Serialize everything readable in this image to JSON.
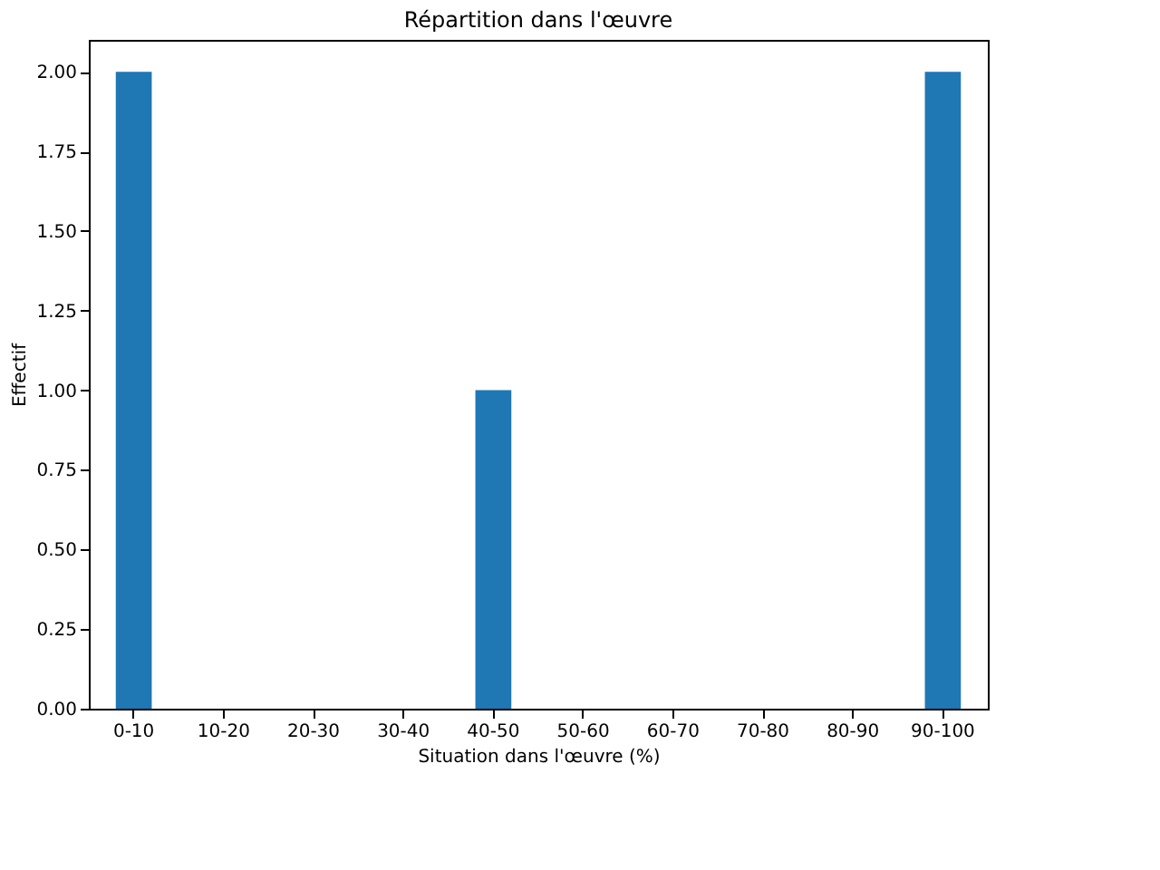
{
  "chart_data": {
    "type": "bar",
    "title": "Répartition dans l'œuvre",
    "xlabel": "Situation dans l'œuvre (%)",
    "ylabel": "Effectif",
    "categories": [
      "0-10",
      "10-20",
      "20-30",
      "30-40",
      "40-50",
      "50-60",
      "60-70",
      "70-80",
      "80-90",
      "90-100"
    ],
    "values": [
      2,
      0,
      0,
      0,
      1,
      0,
      0,
      0,
      0,
      2
    ],
    "color": "#1f77b4",
    "ylim": [
      0,
      2.1
    ],
    "yticks": [
      {
        "value": 0,
        "label": "0.00"
      },
      {
        "value": 0.25,
        "label": "0.25"
      },
      {
        "value": 0.5,
        "label": "0.50"
      },
      {
        "value": 0.75,
        "label": "0.75"
      },
      {
        "value": 1,
        "label": "1.00"
      },
      {
        "value": 1.25,
        "label": "1.25"
      },
      {
        "value": 1.5,
        "label": "1.50"
      },
      {
        "value": 1.75,
        "label": "1.75"
      },
      {
        "value": 2,
        "label": "2.00"
      }
    ],
    "grid": false
  }
}
